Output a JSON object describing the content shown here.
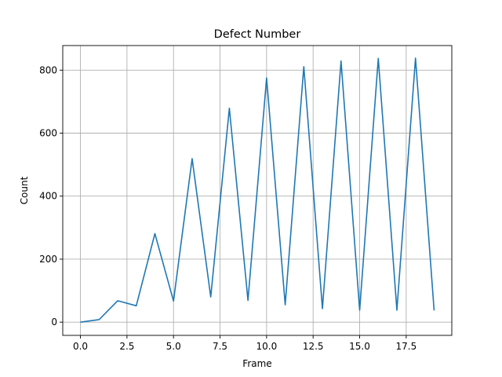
{
  "chart_data": {
    "type": "line",
    "title": "Defect Number",
    "xlabel": "Frame",
    "ylabel": "Count",
    "xlim": [
      -0.95,
      19.95
    ],
    "ylim": [
      -42,
      878
    ],
    "xticks": [
      0,
      2.5,
      5,
      7.5,
      10,
      12.5,
      15,
      17.5
    ],
    "xtick_labels": [
      "0.0",
      "2.5",
      "5.0",
      "7.5",
      "10.0",
      "12.5",
      "15.0",
      "17.5"
    ],
    "yticks": [
      0,
      200,
      400,
      600,
      800
    ],
    "ytick_labels": [
      "0",
      "200",
      "400",
      "600",
      "800"
    ],
    "grid": true,
    "legend": "none",
    "series": [
      {
        "color": "#1f77b4",
        "x": [
          0,
          1,
          2,
          3,
          4,
          5,
          6,
          7,
          8,
          9,
          10,
          11,
          12,
          13,
          14,
          15,
          16,
          17,
          18,
          19
        ],
        "y": [
          0,
          8,
          68,
          52,
          281,
          67,
          519,
          80,
          679,
          69,
          775,
          55,
          811,
          43,
          829,
          38,
          837,
          38,
          838,
          37
        ]
      }
    ]
  }
}
